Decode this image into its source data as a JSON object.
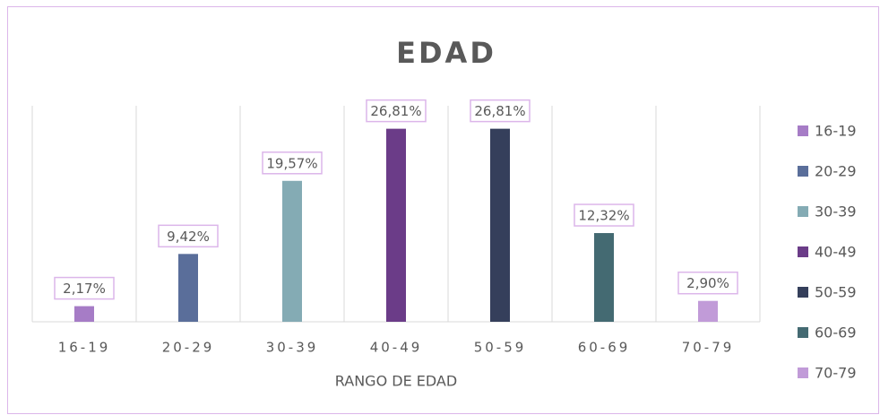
{
  "chart_data": {
    "type": "bar",
    "title": "EDAD",
    "x_label": "RANGO DE EDAD",
    "categories": [
      "16-19",
      "20-29",
      "30-39",
      "40-49",
      "50-59",
      "60-69",
      "70-79"
    ],
    "values": [
      2.17,
      9.42,
      19.57,
      26.81,
      26.81,
      12.32,
      2.9
    ],
    "value_labels": [
      "2,17%",
      "9,42%",
      "19,57%",
      "26,81%",
      "26,81%",
      "12,32%",
      "2,90%"
    ],
    "colors": [
      "#a67cc6",
      "#5a6e9a",
      "#84abb4",
      "#6b3c88",
      "#353f5b",
      "#446a72",
      "#c19bd8"
    ],
    "ylim": [
      0,
      30
    ],
    "legend": "right",
    "grid": true
  }
}
